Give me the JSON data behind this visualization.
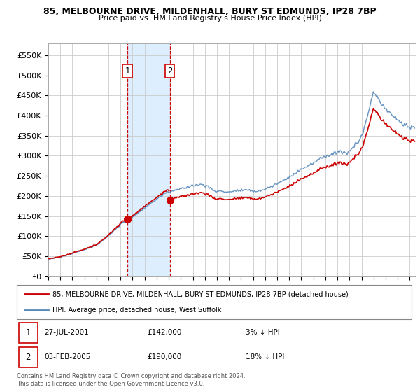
{
  "title1": "85, MELBOURNE DRIVE, MILDENHALL, BURY ST EDMUNDS, IP28 7BP",
  "title2": "Price paid vs. HM Land Registry's House Price Index (HPI)",
  "ylabel_ticks": [
    "£0",
    "£50K",
    "£100K",
    "£150K",
    "£200K",
    "£250K",
    "£300K",
    "£350K",
    "£400K",
    "£450K",
    "£500K",
    "£550K"
  ],
  "ytick_vals": [
    0,
    50000,
    100000,
    150000,
    200000,
    250000,
    300000,
    350000,
    400000,
    450000,
    500000,
    550000
  ],
  "ylim": [
    0,
    580000
  ],
  "xlim_start": 1995.0,
  "xlim_end": 2025.5,
  "legend_line1": "85, MELBOURNE DRIVE, MILDENHALL, BURY ST EDMUNDS, IP28 7BP (detached house)",
  "legend_line2": "HPI: Average price, detached house, West Suffolk",
  "sale1_date": "27-JUL-2001",
  "sale1_price": "£142,000",
  "sale1_hpi": "3% ↓ HPI",
  "sale1_x": 2001.57,
  "sale1_y": 142000,
  "sale2_date": "03-FEB-2005",
  "sale2_price": "£190,000",
  "sale2_hpi": "18% ↓ HPI",
  "sale2_x": 2005.09,
  "sale2_y": 190000,
  "hpi_color": "#5588bb",
  "price_color": "#cc0000",
  "sale_marker_color": "#cc0000",
  "vline_color": "#cc0000",
  "shade_color": "#ddeeff",
  "footer": "Contains HM Land Registry data © Crown copyright and database right 2024.\nThis data is licensed under the Open Government Licence v3.0.",
  "xticks": [
    1995,
    1996,
    1997,
    1998,
    1999,
    2000,
    2001,
    2002,
    2003,
    2004,
    2005,
    2006,
    2007,
    2008,
    2009,
    2010,
    2011,
    2012,
    2013,
    2014,
    2015,
    2016,
    2017,
    2018,
    2019,
    2020,
    2021,
    2022,
    2023,
    2024,
    2025
  ],
  "hpi_nodes_x": [
    1995,
    1996,
    1997,
    1998,
    1999,
    2000,
    2001,
    2002,
    2003,
    2004,
    2005,
    2006,
    2007,
    2008,
    2009,
    2010,
    2011,
    2012,
    2013,
    2014,
    2015,
    2016,
    2017,
    2018,
    2019,
    2020,
    2021,
    2022,
    2023,
    2024,
    2025
  ],
  "hpi_nodes_y": [
    43000,
    47000,
    55000,
    65000,
    78000,
    100000,
    130000,
    148000,
    168000,
    190000,
    210000,
    218000,
    225000,
    228000,
    208000,
    208000,
    212000,
    210000,
    215000,
    228000,
    248000,
    268000,
    285000,
    305000,
    320000,
    318000,
    355000,
    460000,
    420000,
    390000,
    370000
  ]
}
